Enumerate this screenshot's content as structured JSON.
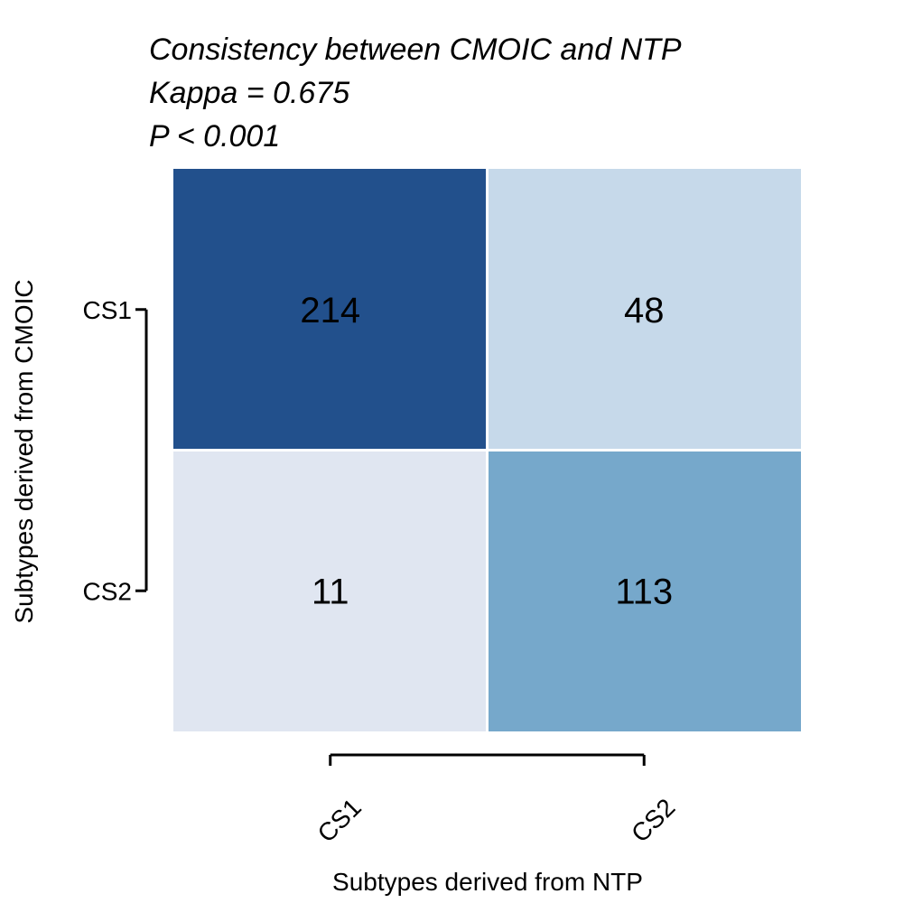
{
  "chart_data": {
    "type": "heatmap",
    "title_lines": [
      "Consistency between CMOIC and NTP",
      "Kappa = 0.675",
      "P < 0.001"
    ],
    "xlabel": "Subtypes derived from NTP",
    "ylabel": "Subtypes derived from CMOIC",
    "x_categories": [
      "CS1",
      "CS2"
    ],
    "y_categories": [
      "CS1",
      "CS2"
    ],
    "values": [
      [
        214,
        48
      ],
      [
        11,
        113
      ]
    ],
    "cell_colors": [
      [
        "#22508c",
        "#c6d9ea"
      ],
      [
        "#e0e6f1",
        "#76a8cb"
      ]
    ],
    "grid": false,
    "legend": "none"
  }
}
